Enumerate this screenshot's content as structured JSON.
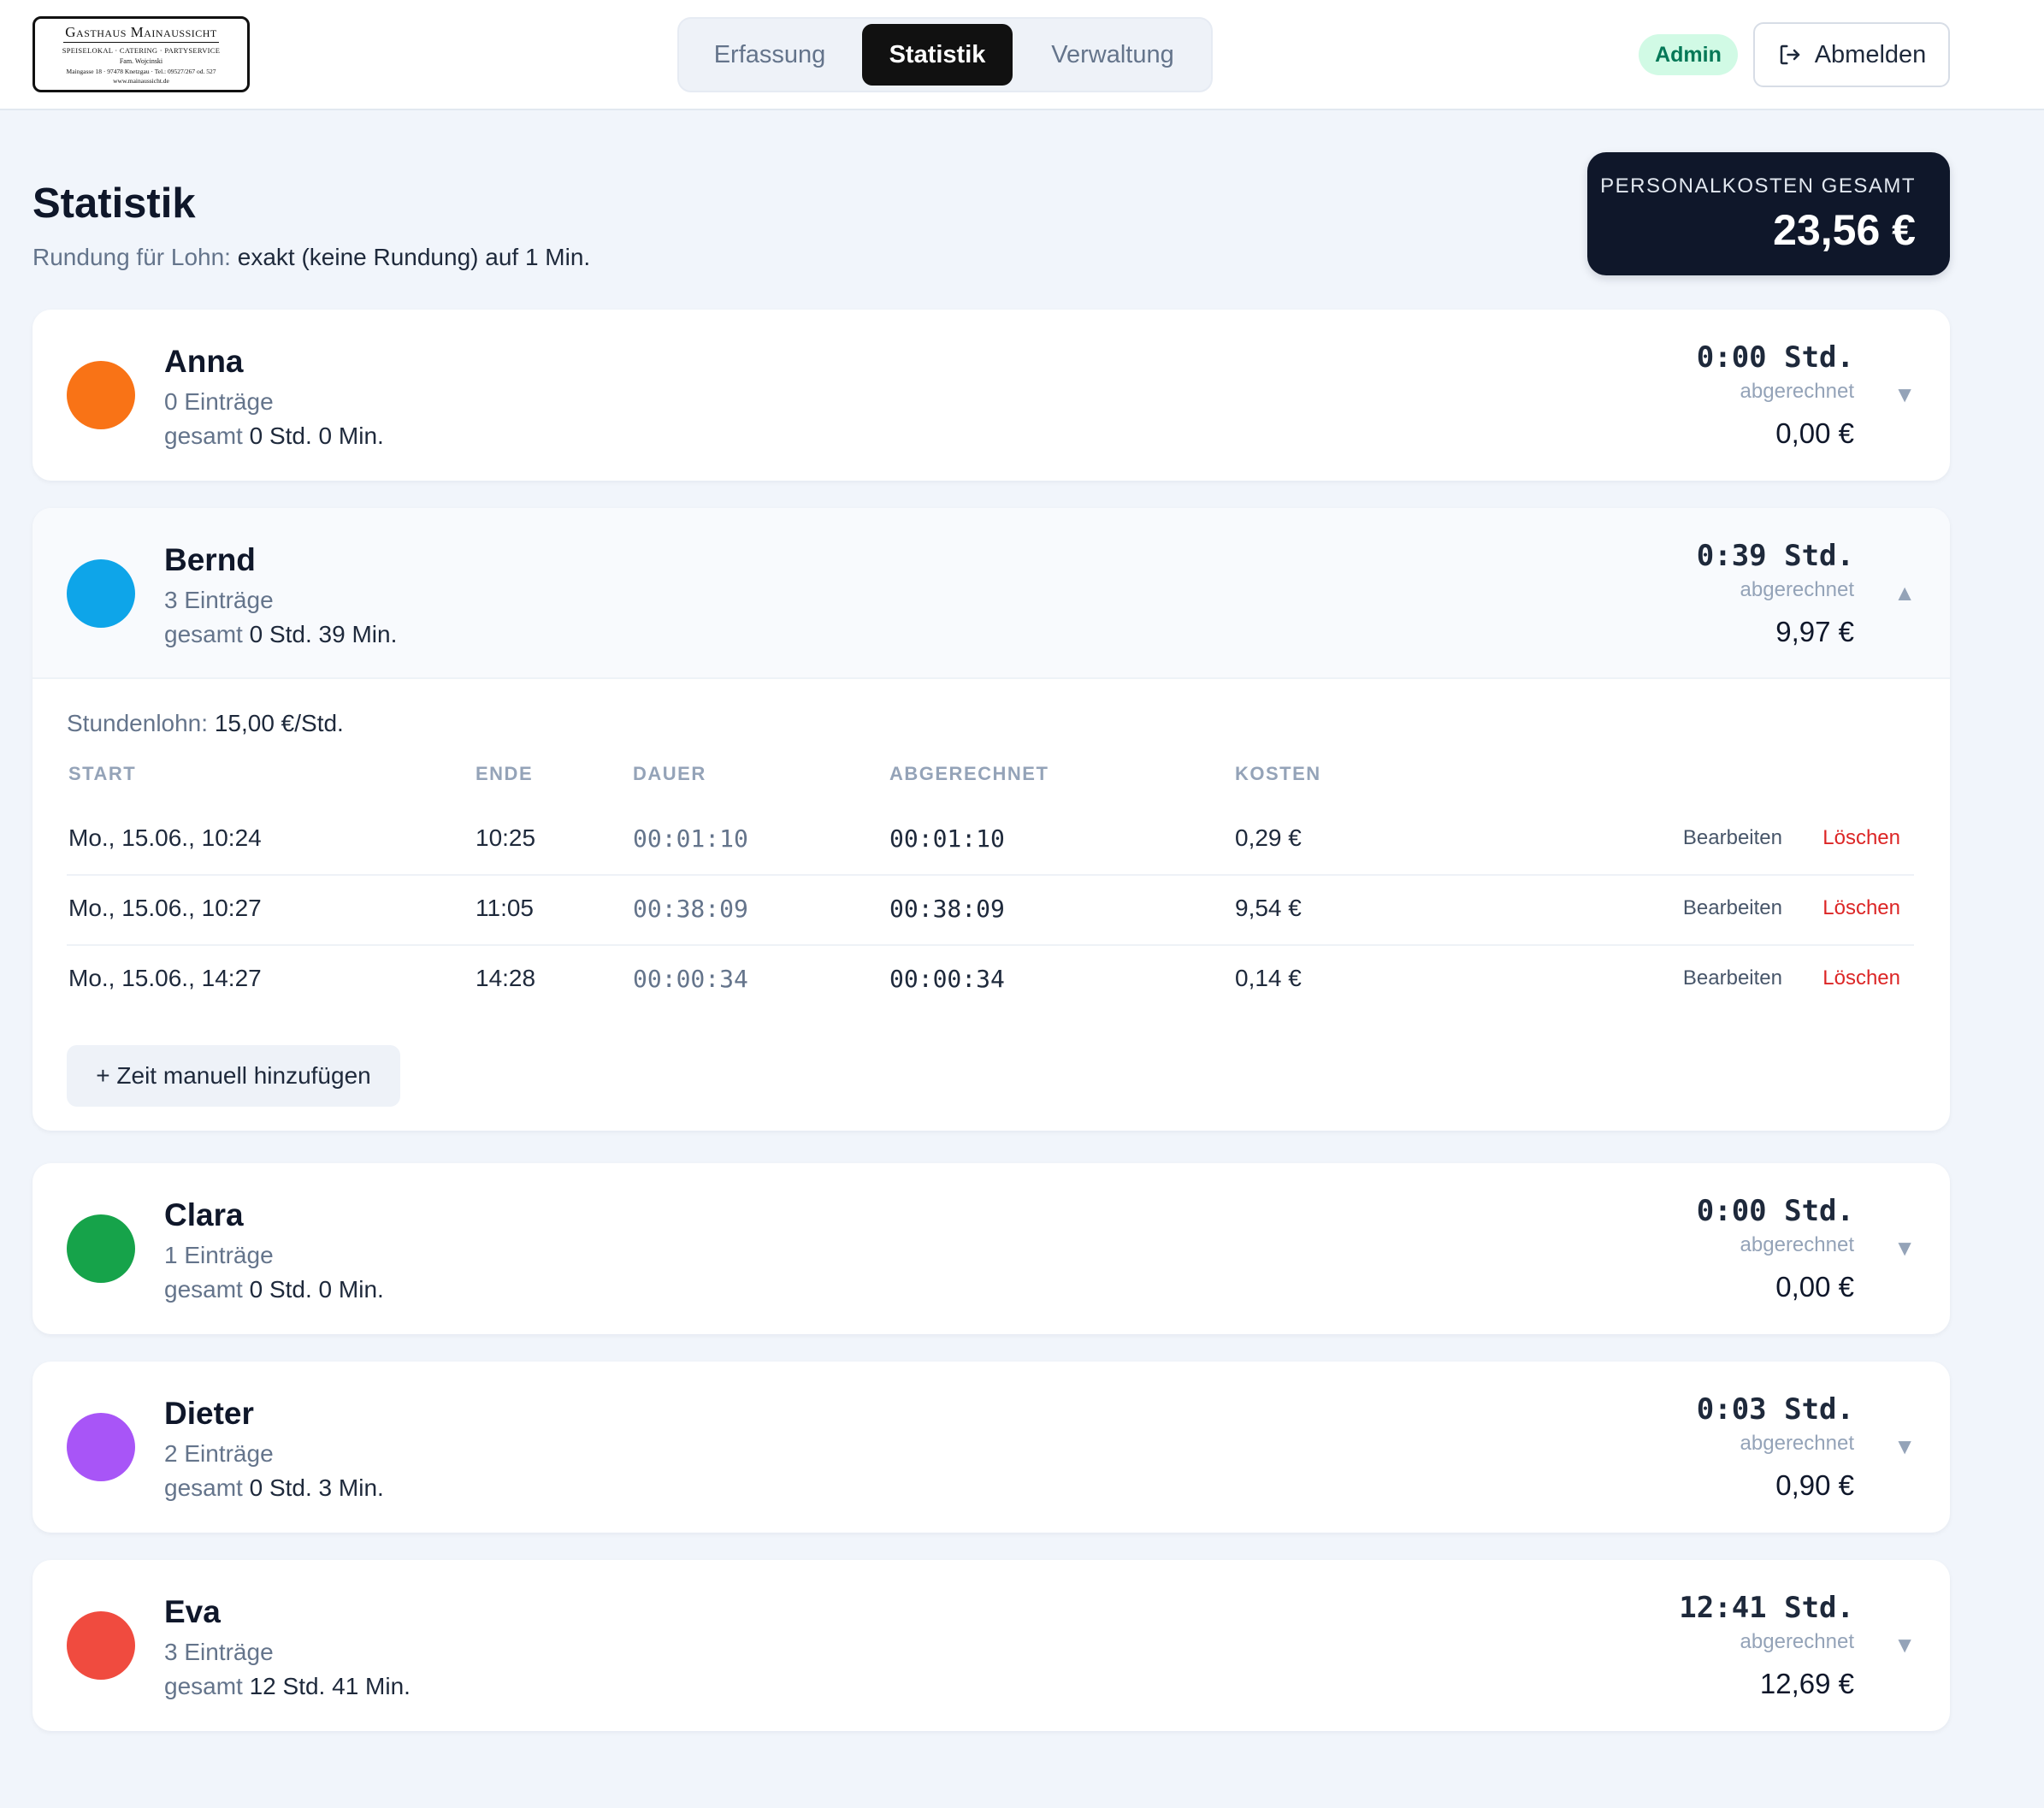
{
  "header": {
    "logo": {
      "line1": "Gasthaus Mainaussicht",
      "line2": "SPEISELOKAL · CATERING · PARTYSERVICE",
      "line3": "Fam. Wojcinski",
      "line4": "Maingasse 18 · 97478 Knetzgau · Tel.: 09527/267 od. 527",
      "line5": "www.mainaussicht.de"
    },
    "tabs": [
      {
        "label": "Erfassung",
        "active": false
      },
      {
        "label": "Statistik",
        "active": true
      },
      {
        "label": "Verwaltung",
        "active": false
      }
    ],
    "role_badge": "Admin",
    "logout_label": "Abmelden",
    "logout_icon": "logout-icon"
  },
  "page": {
    "title": "Statistik",
    "rounding_label": "Rundung für Lohn:",
    "rounding_value": "exakt (keine Rundung) auf 1 Min."
  },
  "total": {
    "label": "PERSONALKOSTEN GESAMT",
    "value": "23,56 €"
  },
  "employees": [
    {
      "name": "Anna",
      "color": "#f97316",
      "entries": "0 Einträge",
      "total_prefix": "gesamt",
      "total_value": "0 Std. 0 Min.",
      "hours": "0:00 Std.",
      "billed_label": "abgerechnet",
      "cost": "0,00 €",
      "chevron": "▼",
      "expanded": false
    },
    {
      "name": "Bernd",
      "color": "#0ea5e9",
      "entries": "3 Einträge",
      "total_prefix": "gesamt",
      "total_value": "0 Std. 39 Min.",
      "hours": "0:39 Std.",
      "billed_label": "abgerechnet",
      "cost": "9,97 €",
      "chevron": "▲",
      "expanded": true,
      "details": {
        "wage_label": "Stundenlohn:",
        "wage_value": "15,00 €/Std.",
        "columns": [
          "START",
          "ENDE",
          "DAUER",
          "ABGERECHNET",
          "KOSTEN"
        ],
        "rows": [
          {
            "start": "Mo., 15.06., 10:24",
            "end": "10:25",
            "duration": "00:01:10",
            "billed": "00:01:10",
            "cost": "0,29 €"
          },
          {
            "start": "Mo., 15.06., 10:27",
            "end": "11:05",
            "duration": "00:38:09",
            "billed": "00:38:09",
            "cost": "9,54 €"
          },
          {
            "start": "Mo., 15.06., 14:27",
            "end": "14:28",
            "duration": "00:00:34",
            "billed": "00:00:34",
            "cost": "0,14 €"
          }
        ],
        "edit_label": "Bearbeiten",
        "delete_label": "Löschen",
        "add_label": "+ Zeit manuell hinzufügen"
      }
    },
    {
      "name": "Clara",
      "color": "#16a34a",
      "entries": "1 Einträge",
      "total_prefix": "gesamt",
      "total_value": "0 Std. 0 Min.",
      "hours": "0:00 Std.",
      "billed_label": "abgerechnet",
      "cost": "0,00 €",
      "chevron": "▼",
      "expanded": false
    },
    {
      "name": "Dieter",
      "color": "#a855f7",
      "entries": "2 Einträge",
      "total_prefix": "gesamt",
      "total_value": "0 Std. 3 Min.",
      "hours": "0:03 Std.",
      "billed_label": "abgerechnet",
      "cost": "0,90 €",
      "chevron": "▼",
      "expanded": false
    },
    {
      "name": "Eva",
      "color": "#f04b3f",
      "entries": "3 Einträge",
      "total_prefix": "gesamt",
      "total_value": "12 Std. 41 Min.",
      "hours": "12:41 Std.",
      "billed_label": "abgerechnet",
      "cost": "12,69 €",
      "chevron": "▼",
      "expanded": false
    }
  ]
}
